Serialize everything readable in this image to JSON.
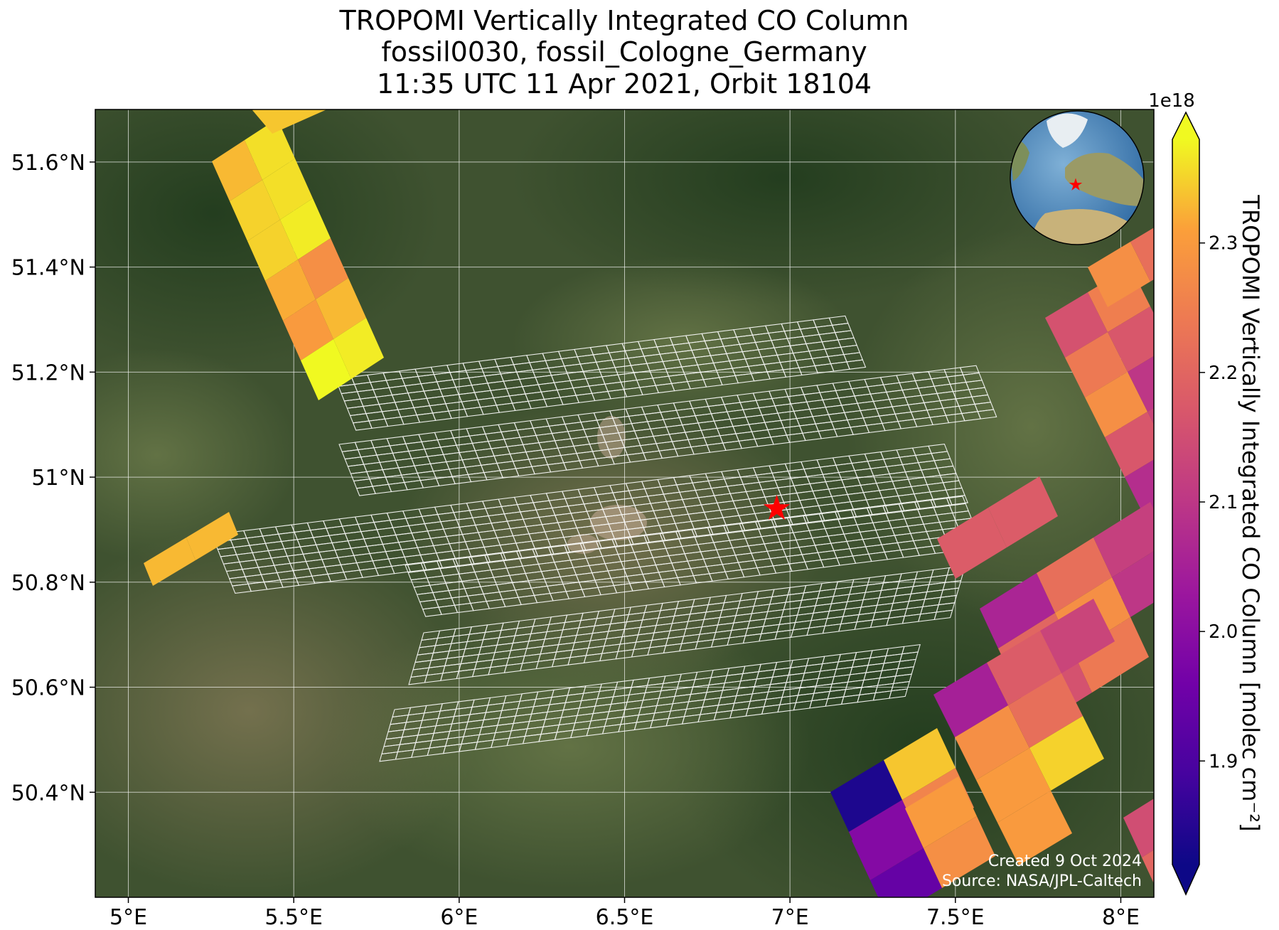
{
  "title": {
    "line1": "TROPOMI Vertically Integrated CO Column",
    "line2": "fossil0030, fossil_Cologne_Germany",
    "line3": "11:35 UTC 11 Apr 2021, Orbit 18104"
  },
  "map": {
    "lon_range": [
      4.9,
      8.1
    ],
    "lat_range": [
      50.2,
      51.7
    ],
    "x_ticks": [
      "5°E",
      "5.5°E",
      "6°E",
      "6.5°E",
      "7°E",
      "7.5°E",
      "8°E"
    ],
    "y_ticks": [
      "50.4°N",
      "50.6°N",
      "50.8°N",
      "51°N",
      "51.2°N",
      "51.4°N",
      "51.6°N"
    ],
    "target": {
      "name": "fossil_Cologne_Germany",
      "lon": 6.96,
      "lat": 50.94,
      "marker_color": "#ff0000"
    },
    "basemap": "satellite imagery",
    "grid_color": "#ffffff"
  },
  "colorbar": {
    "label": "TROPOMI Vertically Integrated CO Column [molec cm⁻²]",
    "multiplier": "1e18",
    "ticks": [
      "1.9",
      "2.0",
      "2.1",
      "2.2",
      "2.3"
    ],
    "range": [
      1.82,
      2.38
    ],
    "colormap": "plasma",
    "extend": "both"
  },
  "inset_globe": {
    "marker_color": "#ff0000"
  },
  "credits": {
    "created": "Created 9 Oct 2024",
    "source": "Source: NASA/JPL-Caltech"
  }
}
